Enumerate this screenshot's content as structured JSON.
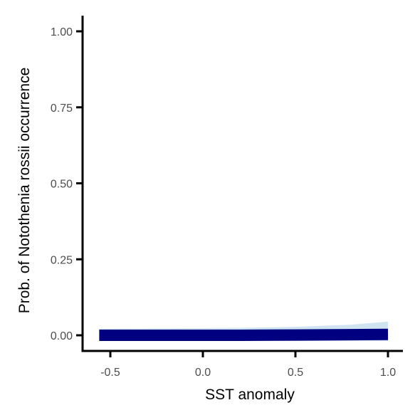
{
  "chart_data": {
    "type": "line",
    "xlabel": "SST anomaly",
    "ylabel": "Prob. of  Notothenia rossii  occurrence",
    "xlim": [
      -0.62,
      1.08
    ],
    "ylim": [
      -0.05,
      1.05
    ],
    "x_ticks": [
      -0.5,
      0.0,
      0.5,
      1.0
    ],
    "x_tick_labels": [
      "-0.5",
      "0.0",
      "0.5",
      "1.0"
    ],
    "y_ticks": [
      0.0,
      0.25,
      0.5,
      0.75,
      1.0
    ],
    "y_tick_labels": [
      "0.00",
      "0.25",
      "0.50",
      "0.75",
      "1.00"
    ],
    "grid": false,
    "legend": "none",
    "series": [
      {
        "x": [
          -0.56,
          -0.2,
          0.2,
          0.5,
          0.8,
          1.0
        ],
        "y": [
          0.0,
          0.0,
          0.0,
          0.001,
          0.002,
          0.003
        ],
        "lower": [
          0.0,
          0.0,
          0.0,
          0.0,
          0.0,
          0.0
        ],
        "upper": [
          0.003,
          0.004,
          0.006,
          0.009,
          0.016,
          0.026
        ],
        "color": "#000080",
        "band_color": "#cfe3f0"
      }
    ]
  }
}
